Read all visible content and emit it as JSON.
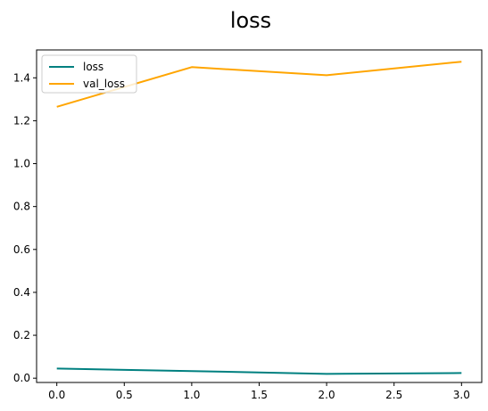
{
  "chart_data": {
    "type": "line",
    "title": "loss",
    "xlabel": "",
    "ylabel": "",
    "xlim": [
      -0.15,
      3.15
    ],
    "ylim": [
      -0.02,
      1.53
    ],
    "x_ticks": [
      "0.0",
      "0.5",
      "1.0",
      "1.5",
      "2.0",
      "2.5",
      "3.0"
    ],
    "x_tick_values": [
      0,
      0.5,
      1,
      1.5,
      2,
      2.5,
      3
    ],
    "y_ticks": [
      "0.0",
      "0.2",
      "0.4",
      "0.6",
      "0.8",
      "1.0",
      "1.2",
      "1.4"
    ],
    "y_tick_values": [
      0,
      0.2,
      0.4,
      0.6,
      0.8,
      1.0,
      1.2,
      1.4
    ],
    "x": [
      0,
      1,
      2,
      3
    ],
    "series": [
      {
        "name": "loss",
        "values": [
          0.045,
          0.033,
          0.02,
          0.024
        ],
        "color": "#008080"
      },
      {
        "name": "val_loss",
        "values": [
          1.265,
          1.45,
          1.412,
          1.475
        ],
        "color": "#ffa500"
      }
    ],
    "grid": false,
    "legend": "upper-left"
  }
}
